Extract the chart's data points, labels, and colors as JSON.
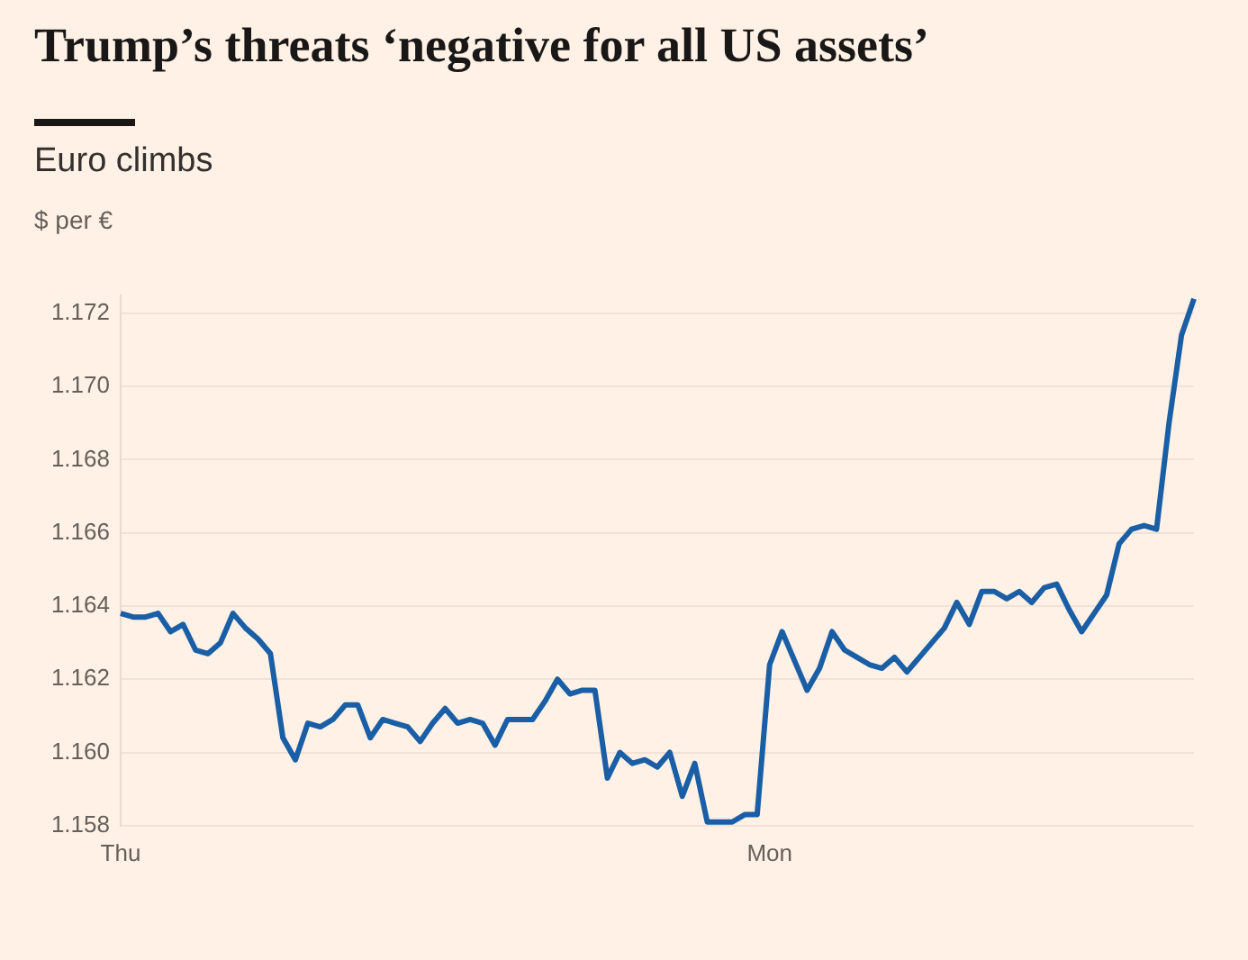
{
  "chart_data": {
    "type": "line",
    "title": "Trump’s threats ‘negative for all US assets’",
    "subtitle": "Euro climbs",
    "ylabel": "$ per €",
    "categories": [
      "Thu",
      null,
      null,
      null,
      null,
      null,
      null,
      null,
      null,
      null,
      null,
      null,
      null,
      null,
      null,
      null,
      null,
      null,
      null,
      null,
      null,
      null,
      null,
      null,
      null,
      null,
      null,
      null,
      null,
      null,
      null,
      null,
      null,
      null,
      null,
      null,
      null,
      null,
      null,
      null,
      null,
      null,
      null,
      null,
      null,
      null,
      null,
      null,
      null,
      null,
      null,
      null,
      "Mon",
      null,
      null,
      null,
      null,
      null,
      null,
      null,
      null,
      null,
      null,
      null,
      null,
      null,
      null,
      null,
      null,
      null,
      null,
      null,
      null,
      null,
      null,
      null,
      null,
      null,
      null,
      null,
      null,
      null,
      null,
      null,
      null,
      null,
      null
    ],
    "series": [
      {
        "color": "#1a5fa6",
        "values": [
          1.1638,
          1.1637,
          1.1637,
          1.1638,
          1.1633,
          1.1635,
          1.1628,
          1.1627,
          1.163,
          1.1638,
          1.1634,
          1.1631,
          1.1627,
          1.1604,
          1.1598,
          1.1608,
          1.1607,
          1.1609,
          1.1613,
          1.1613,
          1.1604,
          1.1609,
          1.1608,
          1.1607,
          1.1603,
          1.1608,
          1.1612,
          1.1608,
          1.1609,
          1.1608,
          1.1602,
          1.1609,
          1.1609,
          1.1609,
          1.1614,
          1.162,
          1.1616,
          1.1617,
          1.1617,
          1.1593,
          1.16,
          1.1597,
          1.1598,
          1.1596,
          1.16,
          1.1588,
          1.1597,
          1.1581,
          1.1581,
          1.1581,
          1.1583,
          1.1583,
          1.1624,
          1.1633,
          1.1625,
          1.1617,
          1.1623,
          1.1633,
          1.1628,
          1.1626,
          1.1624,
          1.1623,
          1.1626,
          1.1622,
          1.1626,
          1.163,
          1.1634,
          1.1641,
          1.1635,
          1.1644,
          1.1644,
          1.1642,
          1.1644,
          1.1641,
          1.1645,
          1.1646,
          1.1639,
          1.1633,
          1.1638,
          1.1643,
          1.1657,
          1.1661,
          1.1662,
          1.1661,
          1.169,
          1.1714,
          1.1724
        ]
      }
    ],
    "ylim": [
      1.158,
      1.1725
    ],
    "yticks": [
      1.158,
      {
        "value": 1.16,
        "label": "1.160"
      },
      1.162,
      1.164,
      1.166,
      1.168,
      {
        "value": 1.17,
        "label": "1.170"
      },
      1.172
    ],
    "grid": "y",
    "legend": false,
    "marker": "none",
    "line_style": "solid"
  }
}
